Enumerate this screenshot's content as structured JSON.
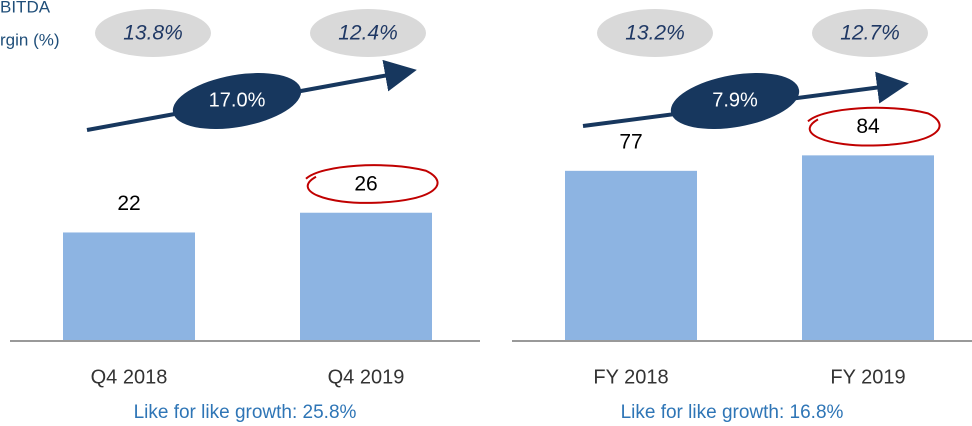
{
  "chart_data": [
    {
      "type": "bar",
      "side_label": [
        "BITDA",
        "rgin (%)"
      ],
      "categories": [
        "Q4 2018",
        "Q4 2019"
      ],
      "values": [
        22,
        26
      ],
      "color": "#8db4e2",
      "ylim": [
        0,
        30
      ],
      "margins": [
        13.8,
        12.4
      ],
      "margin_labels": [
        "13.8%",
        "12.4%"
      ],
      "growth": 17.0,
      "growth_label": "17.0%",
      "note": "Like for like growth: 25.8%"
    },
    {
      "type": "bar",
      "categories": [
        "FY 2018",
        "FY 2019"
      ],
      "values": [
        77,
        84
      ],
      "color": "#8db4e2",
      "ylim": [
        0,
        100
      ],
      "margins": [
        13.2,
        12.7
      ],
      "margin_labels": [
        "13.2%",
        "12.7%"
      ],
      "growth": 7.9,
      "growth_label": "7.9%",
      "note": "Like for like growth: 16.8%"
    }
  ]
}
